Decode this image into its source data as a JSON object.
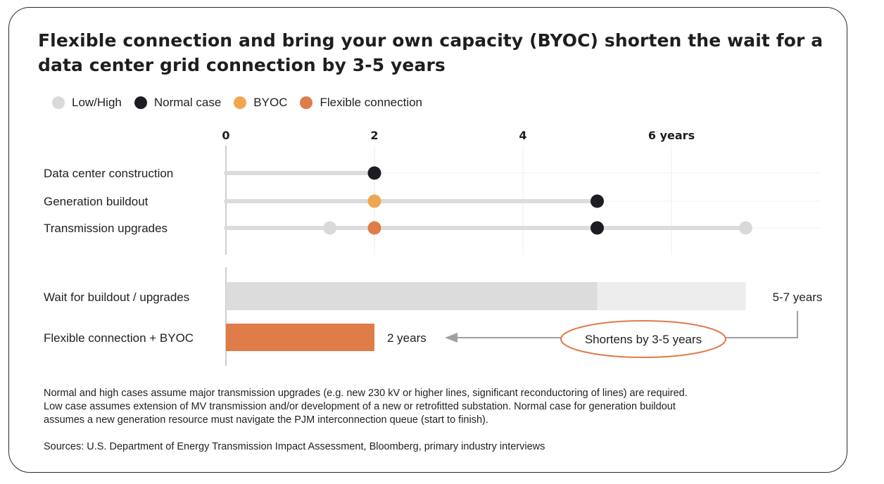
{
  "title": "Flexible connection and bring your own capacity (BYOC) shorten the wait for a data center grid connection by 3-5 years",
  "legend": [
    {
      "label": "Low/High",
      "color": "#d9d9d9"
    },
    {
      "label": "Normal case",
      "color": "#1c1c22"
    },
    {
      "label": "BYOC",
      "color": "#f0a650"
    },
    {
      "label": "Flexible connection",
      "color": "#e07b4a"
    }
  ],
  "chart_data": {
    "type": "dot-range + bar",
    "axis": {
      "ticks": [
        0,
        2,
        4,
        6
      ],
      "tick_labels": [
        "0",
        "2",
        "4",
        "6 years"
      ],
      "xlim": [
        0,
        8
      ]
    },
    "dot_rows": [
      {
        "label": "Data center construction",
        "range": [
          0,
          2
        ],
        "points": [
          {
            "value": 2,
            "kind": "Normal case"
          }
        ]
      },
      {
        "label": "Generation buildout",
        "range": [
          0,
          5
        ],
        "points": [
          {
            "value": 2,
            "kind": "BYOC"
          },
          {
            "value": 5,
            "kind": "Normal case"
          }
        ]
      },
      {
        "label": "Transmission upgrades",
        "range": [
          0,
          7
        ],
        "points": [
          {
            "value": 1.4,
            "kind": "Low/High"
          },
          {
            "value": 2,
            "kind": "Flexible connection"
          },
          {
            "value": 5,
            "kind": "Normal case"
          },
          {
            "value": 7,
            "kind": "Low/High"
          }
        ]
      }
    ],
    "bars": [
      {
        "label": "Wait for buildout / upgrades",
        "start": 0,
        "normal_end": 5,
        "end": 7,
        "value_label": "5-7 years"
      },
      {
        "label": "Flexible connection + BYOC",
        "start": 0,
        "end": 2,
        "value_label": "2 years"
      }
    ],
    "annotation": "Shortens by 3-5 years",
    "colors": {
      "track": "#dcdcdc",
      "grid": "#ececec",
      "bar_normal": "#dcdcdc",
      "bar_high": "#ededed",
      "bar_flex": "#e07b4a",
      "arrow": "#a0a0a0",
      "ellipse": "#e07b4a"
    }
  },
  "notes": {
    "line1": "Normal and high cases assume major transmission upgrades (e.g. new 230 kV or higher lines, significant reconductoring of lines) are required.",
    "line2": "Low case assumes extension of MV transmission and/or development of a new or retrofitted substation.  Normal case for generation buildout",
    "line3": "assumes a new generation resource must navigate the PJM interconnection queue (start to finish).",
    "sources": "Sources: U.S. Department of Energy Transmission Impact Assessment, Bloomberg, primary industry interviews"
  }
}
